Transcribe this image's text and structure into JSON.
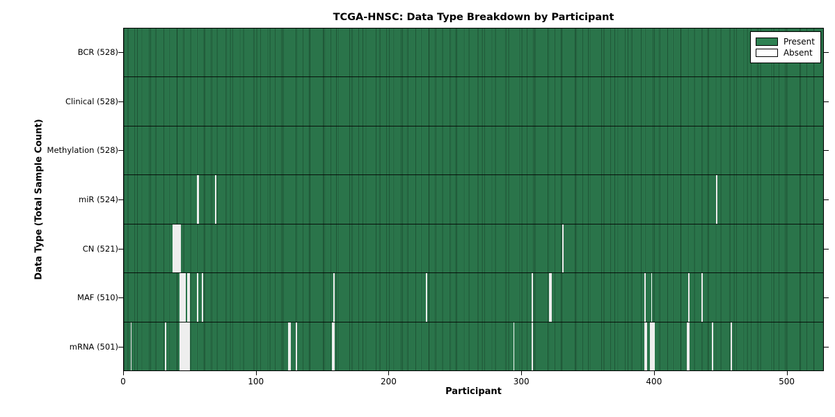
{
  "colors": {
    "present": "#2e8152",
    "present_edge": "#1d4d31",
    "absent": "#eeeeee",
    "border": "#000000"
  },
  "legend": {
    "present_label": "Present",
    "absent_label": "Absent"
  },
  "chart_data": {
    "type": "heatmap",
    "title": "TCGA-HNSC: Data Type Breakdown by Participant",
    "xlabel": "Participant",
    "ylabel": "Data Type (Total Sample Count)",
    "legend_entries": [
      "Present",
      "Absent"
    ],
    "legend_position": "upper right",
    "grid": false,
    "n_participants": 528,
    "x_range": [
      0,
      528
    ],
    "x_ticks": [
      0,
      100,
      200,
      300,
      400,
      500
    ],
    "rows": [
      {
        "label": "BCR (528)",
        "data_type": "BCR",
        "present_count": 528,
        "absent_count": 0,
        "absent_participants": []
      },
      {
        "label": "Clinical (528)",
        "data_type": "Clinical",
        "present_count": 528,
        "absent_count": 0,
        "absent_participants": []
      },
      {
        "label": "Methylation (528)",
        "data_type": "Methylation",
        "present_count": 528,
        "absent_count": 0,
        "absent_participants": []
      },
      {
        "label": "miR (524)",
        "data_type": "miR",
        "present_count": 524,
        "absent_count": 4,
        "absent_participants": [
          55,
          56,
          69,
          447
        ]
      },
      {
        "label": "CN (521)",
        "data_type": "CN",
        "present_count": 521,
        "absent_count": 7,
        "absent_participants": [
          37,
          38,
          39,
          40,
          41,
          42,
          331
        ]
      },
      {
        "label": "MAF (510)",
        "data_type": "MAF",
        "present_count": 510,
        "absent_count": 18,
        "absent_participants": [
          42,
          43,
          44,
          45,
          46,
          48,
          49,
          55,
          59,
          158,
          228,
          308,
          321,
          322,
          393,
          398,
          426,
          436
        ]
      },
      {
        "label": "mRNA (501)",
        "data_type": "mRNA",
        "present_count": 501,
        "absent_count": 27,
        "absent_participants": [
          5,
          31,
          42,
          43,
          44,
          45,
          46,
          47,
          48,
          49,
          124,
          125,
          130,
          157,
          158,
          294,
          308,
          393,
          394,
          397,
          398,
          399,
          400,
          425,
          426,
          444,
          458
        ]
      }
    ]
  }
}
